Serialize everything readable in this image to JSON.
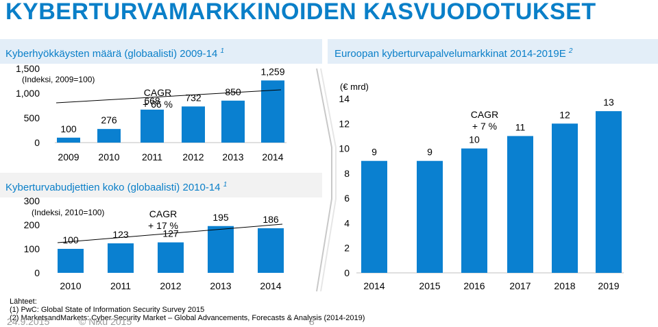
{
  "title": "KYBERTURVAMARKKINOIDEN KASVUODOTUKSET",
  "headers": {
    "left_top": "Kyberhyökkäysten määrä (globaalisti) 2009-14",
    "left_top_sup": "1",
    "left_bottom": "Kyberturvabudjettien koko (globaalisti) 2010-14",
    "left_bottom_sup": "1",
    "right": "Euroopan kyberturvapalvelumarkkinat 2014-2019E",
    "right_sup": "2"
  },
  "colors": {
    "bar": "#0a80d0",
    "accent": "#0a7fc8",
    "header_bg": "#e3eef8",
    "divider": "#c8c8c8"
  },
  "chart_data": [
    {
      "type": "bar",
      "note": "(Indeksi, 2009=100)",
      "categories": [
        "2009",
        "2010",
        "2011",
        "2012",
        "2013",
        "2014"
      ],
      "values": [
        100,
        276,
        668,
        732,
        850,
        1259
      ],
      "value_labels": [
        "100",
        "276",
        "668",
        "732",
        "850",
        "1,259"
      ],
      "y_ticks": [
        "0",
        "500",
        "1,000",
        "1,500"
      ],
      "y_tick_values": [
        0,
        500,
        1000,
        1500
      ],
      "ylim": [
        0,
        1500
      ],
      "cagr_label": [
        "CAGR",
        "+ 66 %"
      ]
    },
    {
      "type": "bar",
      "note": "(Indeksi, 2010=100)",
      "categories": [
        "2010",
        "2011",
        "2012",
        "2013",
        "2014"
      ],
      "values": [
        100,
        123,
        127,
        195,
        186
      ],
      "value_labels": [
        "100",
        "123",
        "127",
        "195",
        "186"
      ],
      "y_ticks": [
        "0",
        "100",
        "200",
        "300"
      ],
      "y_tick_values": [
        0,
        100,
        200,
        300
      ],
      "ylim": [
        0,
        300
      ],
      "cagr_label": [
        "CAGR",
        "+ 17 %"
      ]
    },
    {
      "type": "bar",
      "note": "(€ mrd)",
      "categories": [
        "2014",
        "2015",
        "2016",
        "2017",
        "2018",
        "2019"
      ],
      "values": [
        9,
        9,
        10,
        11,
        12,
        13
      ],
      "value_labels": [
        "9",
        "9",
        "10",
        "11",
        "12",
        "13"
      ],
      "y_ticks": [
        "0",
        "2",
        "4",
        "6",
        "8",
        "10",
        "12",
        "14"
      ],
      "y_tick_values": [
        0,
        2,
        4,
        6,
        8,
        10,
        12,
        14
      ],
      "ylim": [
        0,
        14
      ],
      "cagr_label": [
        "CAGR",
        "+ 7 %"
      ]
    }
  ],
  "sources": {
    "heading": "Lähteet:",
    "items": [
      "(1)    PwC: Global State of Information Security Survey 2015",
      "(2)    MarketsandMarkets: Cyber Security Market – Global Advancements, Forecasts & Analysis (2014-2019)"
    ]
  },
  "footer": {
    "date": "24.9.2015",
    "copyright": "© Nixu 2015",
    "page": "8"
  }
}
